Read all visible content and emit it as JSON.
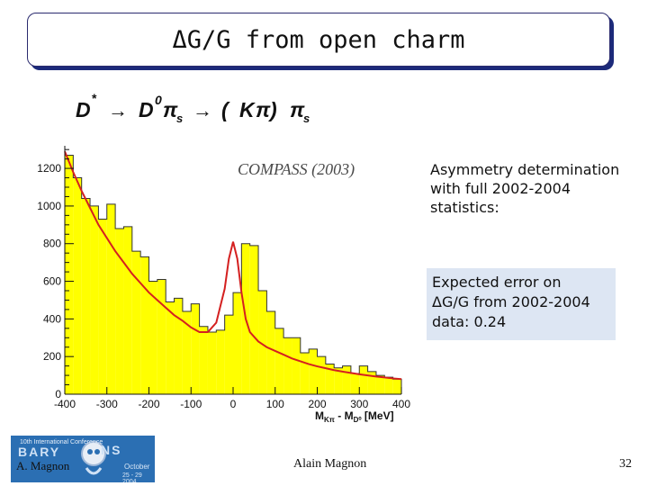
{
  "slide": {
    "title": "ΔG/G from open charm",
    "asymmetry_text": "Asymmetry determination\nwith full 2002-2004\nstatistics:",
    "error_line1": "Expected error on",
    "error_line2": "G/G from 2002-2004",
    "error_delta": "Δ",
    "error_line3": "data:  0.24",
    "footer_author": "Alain Magnon",
    "page_number": "32"
  },
  "logo": {
    "author": "A. Magnon",
    "conference_line": "10th International Conference",
    "word_left": "BARY",
    "word_right": "NS",
    "month": "October",
    "date": "25 - 29 2004"
  },
  "decay": {
    "D": "D",
    "star": "*",
    "arrow1": "→",
    "D0": "D",
    "zero": "0",
    "pi": "π",
    "s": "s",
    "arrow2": "→",
    "paren_open": "( ",
    "K": "K",
    "pi2": "π",
    "paren_close": " )",
    "pi3": "π",
    "s2": "s"
  },
  "chart_data": {
    "type": "bar",
    "annotation": "COMPASS (2003)",
    "xlabel_main": "M",
    "xlabel_sub1": "Kπ",
    "xlabel_dash": " - M",
    "xlabel_sub2": "D⁰",
    "xlabel_unit": " [MeV]",
    "xlim": [
      -400,
      400
    ],
    "ylim": [
      0,
      1320
    ],
    "x_ticks": [
      -400,
      -300,
      -200,
      -100,
      0,
      100,
      200,
      300,
      400
    ],
    "y_ticks": [
      0,
      200,
      400,
      600,
      800,
      1000,
      1200
    ],
    "bin_width": 20,
    "bin_edges_start": -400,
    "values": [
      1270,
      1150,
      1040,
      1000,
      930,
      1010,
      880,
      890,
      760,
      730,
      600,
      610,
      490,
      510,
      440,
      480,
      360,
      330,
      340,
      420,
      540,
      800,
      790,
      550,
      440,
      350,
      300,
      300,
      220,
      240,
      200,
      160,
      140,
      150,
      110,
      150,
      120,
      100,
      90,
      80
    ],
    "fit": {
      "color": "#d42020",
      "x": [
        -400,
        -380,
        -360,
        -340,
        -320,
        -300,
        -280,
        -260,
        -240,
        -220,
        -200,
        -180,
        -160,
        -140,
        -120,
        -100,
        -80,
        -60,
        -40,
        -20,
        -10,
        0,
        10,
        20,
        30,
        40,
        60,
        80,
        100,
        120,
        140,
        160,
        180,
        200,
        220,
        240,
        260,
        280,
        300,
        320,
        340,
        360,
        380,
        400
      ],
      "y": [
        1290,
        1180,
        1080,
        990,
        900,
        830,
        760,
        700,
        640,
        590,
        540,
        500,
        460,
        420,
        390,
        355,
        330,
        330,
        380,
        560,
        720,
        810,
        720,
        540,
        400,
        330,
        280,
        250,
        230,
        210,
        190,
        175,
        160,
        148,
        138,
        128,
        120,
        113,
        106,
        100,
        94,
        89,
        84,
        80
      ]
    },
    "bar_color": "#ffff00",
    "outline_color": "#333333"
  }
}
